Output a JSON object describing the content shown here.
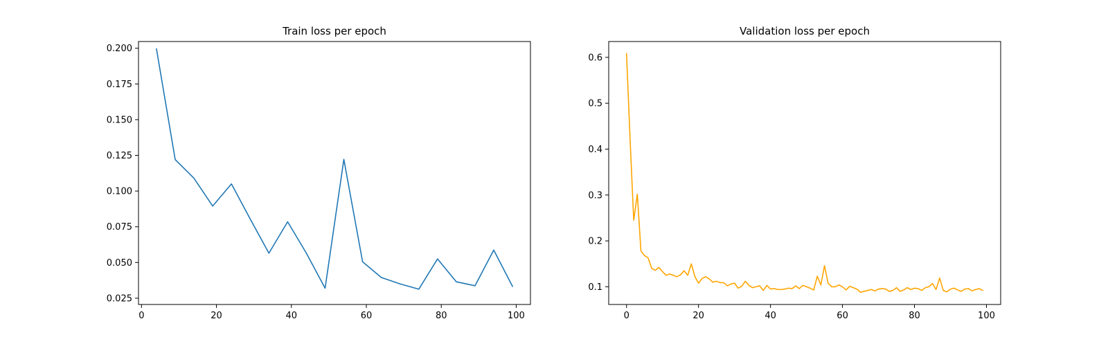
{
  "chart_data": [
    {
      "type": "line",
      "title": "Train loss per epoch",
      "xlabel": "",
      "ylabel": "",
      "xlim": [
        -0.8,
        103.8
      ],
      "ylim": [
        0.0206,
        0.2047
      ],
      "x_ticks": [
        0,
        20,
        40,
        60,
        80,
        100
      ],
      "y_ticks": [
        0.025,
        0.05,
        0.075,
        0.1,
        0.125,
        0.15,
        0.175,
        0.2
      ],
      "y_tick_labels": [
        "0.025",
        "0.050",
        "0.075",
        "0.100",
        "0.125",
        "0.150",
        "0.175",
        "0.200"
      ],
      "grid": false,
      "legend": "none",
      "color": "#1f77b4",
      "series": [
        {
          "x": [
            4,
            9,
            14,
            19,
            24,
            29,
            34,
            39,
            44,
            49,
            54,
            59,
            64,
            69,
            74,
            79,
            84,
            89,
            94,
            99
          ],
          "values": [
            0.1995,
            0.122,
            0.109,
            0.0895,
            0.105,
            0.0805,
            0.0565,
            0.0785,
            0.0565,
            0.032,
            0.1222,
            0.0505,
            0.0395,
            0.035,
            0.0313,
            0.0525,
            0.0365,
            0.0337,
            0.0587,
            0.0333
          ]
        }
      ]
    },
    {
      "type": "line",
      "title": "Validation loss per epoch",
      "xlabel": "",
      "ylabel": "",
      "xlim": [
        -4.95,
        103.95
      ],
      "ylim": [
        0.0614,
        0.6345
      ],
      "x_ticks": [
        0,
        20,
        40,
        60,
        80,
        100
      ],
      "y_ticks": [
        0.1,
        0.2,
        0.3,
        0.4,
        0.5,
        0.6
      ],
      "y_tick_labels": [
        "0.1",
        "0.2",
        "0.3",
        "0.4",
        "0.5",
        "0.6"
      ],
      "grid": false,
      "legend": "none",
      "color": "#ffa500",
      "series": [
        {
          "x": [
            0,
            1,
            2,
            3,
            4,
            5,
            6,
            7,
            8,
            9,
            10,
            11,
            12,
            13,
            14,
            15,
            16,
            17,
            18,
            19,
            20,
            21,
            22,
            23,
            24,
            25,
            26,
            27,
            28,
            29,
            30,
            31,
            32,
            33,
            34,
            35,
            36,
            37,
            38,
            39,
            40,
            41,
            42,
            43,
            44,
            45,
            46,
            47,
            48,
            49,
            50,
            51,
            52,
            53,
            54,
            55,
            56,
            57,
            58,
            59,
            60,
            61,
            62,
            63,
            64,
            65,
            66,
            67,
            68,
            69,
            70,
            71,
            72,
            73,
            74,
            75,
            76,
            77,
            78,
            79,
            80,
            81,
            82,
            83,
            84,
            85,
            86,
            87,
            88,
            89,
            90,
            91,
            92,
            93,
            94,
            95,
            96,
            97,
            98,
            99
          ],
          "values": [
            0.608,
            0.42,
            0.245,
            0.302,
            0.178,
            0.168,
            0.163,
            0.14,
            0.136,
            0.142,
            0.133,
            0.125,
            0.128,
            0.125,
            0.122,
            0.126,
            0.135,
            0.125,
            0.15,
            0.122,
            0.108,
            0.118,
            0.122,
            0.117,
            0.11,
            0.112,
            0.109,
            0.109,
            0.102,
            0.106,
            0.108,
            0.097,
            0.101,
            0.112,
            0.103,
            0.098,
            0.1,
            0.102,
            0.092,
            0.103,
            0.095,
            0.096,
            0.094,
            0.094,
            0.095,
            0.097,
            0.096,
            0.102,
            0.096,
            0.103,
            0.1,
            0.097,
            0.093,
            0.123,
            0.104,
            0.146,
            0.108,
            0.1,
            0.1,
            0.104,
            0.1,
            0.093,
            0.101,
            0.098,
            0.095,
            0.088,
            0.09,
            0.092,
            0.094,
            0.091,
            0.095,
            0.096,
            0.095,
            0.09,
            0.092,
            0.098,
            0.09,
            0.093,
            0.098,
            0.094,
            0.097,
            0.096,
            0.092,
            0.098,
            0.1,
            0.107,
            0.094,
            0.119,
            0.092,
            0.089,
            0.095,
            0.097,
            0.093,
            0.09,
            0.095,
            0.096,
            0.091,
            0.094,
            0.096,
            0.092
          ]
        }
      ]
    }
  ]
}
